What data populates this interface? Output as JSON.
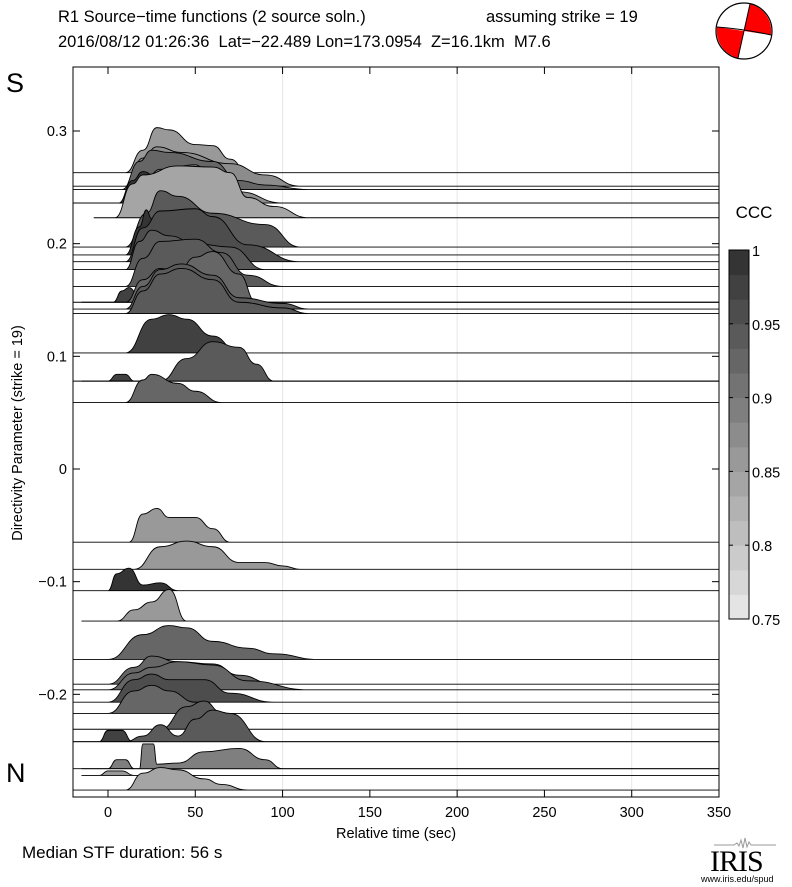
{
  "header": {
    "title": "R1 Source−time functions (2 source soln.)",
    "subtitle": "2016/08/12 01:26:36  Lat=−22.489 Lon=173.0954  Z=16.1km  M7.6",
    "strike_note": "assuming strike = 19"
  },
  "labels": {
    "south": "S",
    "north": "N",
    "median": "Median STF duration: 56 s"
  },
  "logo": {
    "name": "IRIS",
    "url": "www.iris.edu/spud"
  },
  "beachball": {
    "fill_color": "#ff0000",
    "strike": 19
  },
  "colors": {
    "gridline": "#e6e6e6",
    "axis": "#000000"
  },
  "chart_data": {
    "type": "area",
    "title": "R1 Source−time functions (2 source soln.)",
    "xlabel": "Relative time (sec)",
    "ylabel": "Directivity Parameter (strike = 19)",
    "xlim": [
      -20,
      350
    ],
    "ylim": [
      -0.29,
      0.36
    ],
    "xticks": [
      0,
      50,
      100,
      150,
      200,
      250,
      300,
      350
    ],
    "xtick_labels": [
      "0",
      "50",
      "100",
      "150",
      "200",
      "250",
      "300",
      "350"
    ],
    "yticks": [
      0.3,
      0.2,
      0.1,
      0,
      -0.1,
      -0.2
    ],
    "ytick_labels": [
      "0.3",
      "0.2",
      "0.1",
      "0",
      "−0.1",
      "−0.2"
    ],
    "vertical_gridlines": [
      100,
      200,
      300
    ],
    "colorbar": {
      "label": "CCC",
      "range": [
        0.75,
        1
      ],
      "ticks": [
        1,
        0.95,
        0.9,
        0.85,
        0.8,
        0.75
      ],
      "tick_labels": [
        "1",
        "0.95",
        "0.9",
        "0.85",
        "0.8",
        "0.75"
      ],
      "levels": 15
    },
    "traces": [
      {
        "baseline": 0.263,
        "ccc": 0.86,
        "start": -20,
        "pts": [
          [
            10,
            0
          ],
          [
            20,
            0.02
          ],
          [
            28,
            0.04
          ],
          [
            35,
            0.038
          ],
          [
            50,
            0.025
          ],
          [
            60,
            0.024
          ],
          [
            70,
            0.012
          ],
          [
            80,
            0
          ]
        ]
      },
      {
        "baseline": 0.251,
        "ccc": 0.88,
        "start": -20,
        "pts": [
          [
            10,
            0
          ],
          [
            20,
            0.025
          ],
          [
            28,
            0.035
          ],
          [
            42,
            0.03
          ],
          [
            70,
            0.02
          ],
          [
            90,
            0.01
          ],
          [
            110,
            0
          ]
        ]
      },
      {
        "baseline": 0.248,
        "ccc": 0.92,
        "start": -20,
        "pts": [
          [
            8,
            0
          ],
          [
            18,
            0.025
          ],
          [
            25,
            0.035
          ],
          [
            35,
            0.033
          ],
          [
            60,
            0.025
          ],
          [
            75,
            0.008
          ],
          [
            90,
            0.004
          ],
          [
            115,
            0
          ]
        ]
      },
      {
        "baseline": 0.236,
        "ccc": 0.99,
        "start": -20,
        "pts": [
          [
            6,
            0
          ],
          [
            14,
            0.02
          ],
          [
            20,
            0.028
          ],
          [
            35,
            0.008
          ],
          [
            45,
            0
          ]
        ]
      },
      {
        "baseline": 0.236,
        "ccc": 0.88,
        "start": -20,
        "pts": [
          [
            10,
            0
          ],
          [
            20,
            0.018
          ],
          [
            30,
            0.03
          ],
          [
            50,
            0.034
          ],
          [
            60,
            0.02
          ],
          [
            75,
            0.01
          ],
          [
            100,
            0
          ]
        ]
      },
      {
        "baseline": 0.223,
        "ccc": 0.85,
        "start": -8,
        "pts": [
          [
            4,
            0
          ],
          [
            14,
            0.03
          ],
          [
            20,
            0.038
          ],
          [
            40,
            0.046
          ],
          [
            60,
            0.045
          ],
          [
            70,
            0.04
          ],
          [
            80,
            0.018
          ],
          [
            95,
            0.01
          ],
          [
            115,
            0
          ]
        ]
      },
      {
        "baseline": 0.197,
        "ccc": 0.94,
        "start": -20,
        "pts": [
          [
            10,
            0
          ],
          [
            22,
            0.03
          ],
          [
            30,
            0.05
          ],
          [
            40,
            0.045
          ],
          [
            60,
            0.03
          ],
          [
            90,
            0.02
          ],
          [
            110,
            0
          ]
        ]
      },
      {
        "baseline": 0.19,
        "ccc": 0.99,
        "start": -20,
        "pts": [
          [
            10,
            0
          ],
          [
            18,
            0.025
          ],
          [
            22,
            0.04
          ],
          [
            25,
            0.032
          ],
          [
            33,
            0.015
          ],
          [
            40,
            0
          ]
        ]
      },
      {
        "baseline": 0.184,
        "ccc": 0.96,
        "start": -20,
        "pts": [
          [
            10,
            0
          ],
          [
            20,
            0.03
          ],
          [
            30,
            0.045
          ],
          [
            50,
            0.047
          ],
          [
            60,
            0.04
          ],
          [
            80,
            0.015
          ],
          [
            110,
            0
          ]
        ]
      },
      {
        "baseline": 0.177,
        "ccc": 0.94,
        "start": -20,
        "pts": [
          [
            10,
            0
          ],
          [
            18,
            0.025
          ],
          [
            25,
            0.035
          ],
          [
            35,
            0.03
          ],
          [
            50,
            0.023
          ],
          [
            70,
            0.02
          ],
          [
            90,
            0
          ]
        ]
      },
      {
        "baseline": 0.162,
        "ccc": 0.94,
        "start": -20,
        "pts": [
          [
            10,
            0
          ],
          [
            20,
            0.025
          ],
          [
            30,
            0.04
          ],
          [
            50,
            0.042
          ],
          [
            65,
            0.03
          ],
          [
            80,
            0.01
          ],
          [
            100,
            0
          ]
        ]
      },
      {
        "baseline": 0.148,
        "ccc": 0.97,
        "start": -15,
        "pts": [
          [
            3,
            0
          ],
          [
            8,
            0.01
          ],
          [
            12,
            0.013
          ],
          [
            18,
            0.005
          ],
          [
            25,
            0
          ]
        ]
      },
      {
        "baseline": 0.148,
        "ccc": 0.93,
        "start": -20,
        "pts": [
          [
            10,
            0
          ],
          [
            20,
            0.02
          ],
          [
            30,
            0.03
          ],
          [
            40,
            0.027
          ],
          [
            50,
            0.04
          ],
          [
            60,
            0.045
          ],
          [
            75,
            0.025
          ],
          [
            85,
            0
          ]
        ]
      },
      {
        "baseline": 0.142,
        "ccc": 0.94,
        "start": -20,
        "pts": [
          [
            10,
            0
          ],
          [
            20,
            0.02
          ],
          [
            30,
            0.035
          ],
          [
            42,
            0.04
          ],
          [
            60,
            0.03
          ],
          [
            75,
            0.01
          ],
          [
            100,
            0.005
          ],
          [
            115,
            0
          ]
        ]
      },
      {
        "baseline": 0.138,
        "ccc": 0.95,
        "start": -20,
        "pts": [
          [
            10,
            0
          ],
          [
            20,
            0.02
          ],
          [
            30,
            0.035
          ],
          [
            42,
            0.04
          ],
          [
            60,
            0.03
          ],
          [
            75,
            0.01
          ],
          [
            100,
            0.005
          ],
          [
            115,
            0
          ]
        ]
      },
      {
        "baseline": 0.103,
        "ccc": 0.98,
        "start": -20,
        "pts": [
          [
            10,
            0
          ],
          [
            25,
            0.03
          ],
          [
            35,
            0.034
          ],
          [
            45,
            0.03
          ],
          [
            60,
            0.015
          ],
          [
            75,
            0
          ]
        ]
      },
      {
        "baseline": 0.078,
        "ccc": 0.97,
        "start": -15,
        "pts": [
          [
            0,
            0
          ],
          [
            5,
            0.006
          ],
          [
            10,
            0.006
          ],
          [
            15,
            0
          ]
        ]
      },
      {
        "baseline": 0.078,
        "ccc": 0.95,
        "start": -20,
        "pts": [
          [
            30,
            0
          ],
          [
            45,
            0.02
          ],
          [
            60,
            0.035
          ],
          [
            75,
            0.03
          ],
          [
            85,
            0.015
          ],
          [
            95,
            0
          ]
        ]
      },
      {
        "baseline": 0.059,
        "ccc": 0.93,
        "start": -20,
        "pts": [
          [
            10,
            0
          ],
          [
            20,
            0.02
          ],
          [
            25,
            0.025
          ],
          [
            40,
            0.017
          ],
          [
            50,
            0.01
          ],
          [
            65,
            0
          ]
        ]
      },
      {
        "baseline": -0.065,
        "ccc": 0.86,
        "start": -20,
        "pts": [
          [
            12,
            0
          ],
          [
            20,
            0.025
          ],
          [
            28,
            0.03
          ],
          [
            35,
            0.022
          ],
          [
            50,
            0.022
          ],
          [
            60,
            0.012
          ],
          [
            70,
            0
          ]
        ]
      },
      {
        "baseline": -0.089,
        "ccc": 0.86,
        "start": -20,
        "pts": [
          [
            15,
            0
          ],
          [
            30,
            0.02
          ],
          [
            45,
            0.025
          ],
          [
            60,
            0.02
          ],
          [
            75,
            0.006
          ],
          [
            90,
            0.006
          ],
          [
            100,
            0.003
          ],
          [
            110,
            0
          ]
        ]
      },
      {
        "baseline": -0.108,
        "ccc": 0.99,
        "start": -20,
        "pts": [
          [
            0,
            0
          ],
          [
            5,
            0.015
          ],
          [
            12,
            0.02
          ],
          [
            20,
            0.005
          ],
          [
            30,
            0.007
          ],
          [
            40,
            0
          ]
        ]
      },
      {
        "baseline": -0.135,
        "ccc": 0.86,
        "start": -15,
        "pts": [
          [
            5,
            0
          ],
          [
            15,
            0.01
          ],
          [
            25,
            0.017
          ],
          [
            35,
            0.028
          ],
          [
            45,
            0
          ]
        ]
      },
      {
        "baseline": -0.169,
        "ccc": 0.93,
        "start": -20,
        "pts": [
          [
            0,
            0
          ],
          [
            20,
            0.022
          ],
          [
            35,
            0.03
          ],
          [
            45,
            0.028
          ],
          [
            60,
            0.016
          ],
          [
            80,
            0.01
          ],
          [
            95,
            0.005
          ],
          [
            120,
            0
          ]
        ]
      },
      {
        "baseline": -0.191,
        "ccc": 0.93,
        "start": -20,
        "pts": [
          [
            0,
            0
          ],
          [
            15,
            0.015
          ],
          [
            25,
            0.025
          ],
          [
            40,
            0.02
          ],
          [
            60,
            0.018
          ],
          [
            75,
            0.008
          ],
          [
            95,
            0
          ]
        ]
      },
      {
        "baseline": -0.196,
        "ccc": 0.92,
        "start": -20,
        "pts": [
          [
            0,
            0
          ],
          [
            15,
            0.015
          ],
          [
            25,
            0.02
          ],
          [
            40,
            0.025
          ],
          [
            60,
            0.022
          ],
          [
            80,
            0.008
          ],
          [
            115,
            0
          ]
        ]
      },
      {
        "baseline": -0.207,
        "ccc": 0.96,
        "start": -20,
        "pts": [
          [
            0,
            0
          ],
          [
            15,
            0.02
          ],
          [
            25,
            0.025
          ],
          [
            35,
            0.02
          ],
          [
            55,
            0.02
          ],
          [
            70,
            0.008
          ],
          [
            95,
            0
          ]
        ]
      },
      {
        "baseline": -0.217,
        "ccc": 0.93,
        "start": -20,
        "pts": [
          [
            0,
            0
          ],
          [
            15,
            0.02
          ],
          [
            25,
            0.025
          ],
          [
            35,
            0.02
          ],
          [
            50,
            0.01
          ],
          [
            60,
            0
          ]
        ]
      },
      {
        "baseline": -0.231,
        "ccc": 0.95,
        "start": -20,
        "pts": [
          [
            30,
            0
          ],
          [
            45,
            0.02
          ],
          [
            55,
            0.025
          ],
          [
            65,
            0.015
          ],
          [
            80,
            0
          ]
        ]
      },
      {
        "baseline": -0.242,
        "ccc": 0.97,
        "start": -20,
        "pts": [
          [
            -5,
            0
          ],
          [
            0,
            0.01
          ],
          [
            8,
            0.01
          ],
          [
            14,
            0
          ]
        ]
      },
      {
        "baseline": -0.242,
        "ccc": 0.95,
        "start": -20,
        "pts": [
          [
            10,
            0
          ],
          [
            20,
            0.005
          ],
          [
            30,
            0.015
          ],
          [
            40,
            0.005
          ],
          [
            50,
            0.02
          ],
          [
            60,
            0.028
          ],
          [
            70,
            0.025
          ],
          [
            90,
            0
          ]
        ]
      },
      {
        "baseline": -0.266,
        "ccc": 0.89,
        "start": -15,
        "pts": [
          [
            0,
            0
          ],
          [
            5,
            0.008
          ],
          [
            10,
            0.008
          ],
          [
            15,
            0
          ]
        ]
      },
      {
        "baseline": -0.266,
        "ccc": 0.89,
        "start": -20,
        "pts": [
          [
            18,
            0
          ],
          [
            20,
            0.022
          ],
          [
            26,
            0.022
          ],
          [
            28,
            0.004
          ],
          [
            40,
            0.005
          ],
          [
            55,
            0.015
          ],
          [
            75,
            0.018
          ],
          [
            90,
            0.008
          ],
          [
            100,
            0
          ]
        ]
      },
      {
        "baseline": -0.272,
        "ccc": 0.86,
        "start": -15,
        "pts": [
          [
            -5,
            0
          ],
          [
            0,
            0.004
          ],
          [
            8,
            0.004
          ],
          [
            15,
            0
          ]
        ]
      },
      {
        "baseline": -0.285,
        "ccc": 0.84,
        "start": -20,
        "pts": [
          [
            10,
            0
          ],
          [
            20,
            0.015
          ],
          [
            30,
            0.02
          ],
          [
            40,
            0.018
          ],
          [
            55,
            0.01
          ],
          [
            65,
            0.005
          ],
          [
            80,
            0
          ]
        ]
      }
    ]
  }
}
